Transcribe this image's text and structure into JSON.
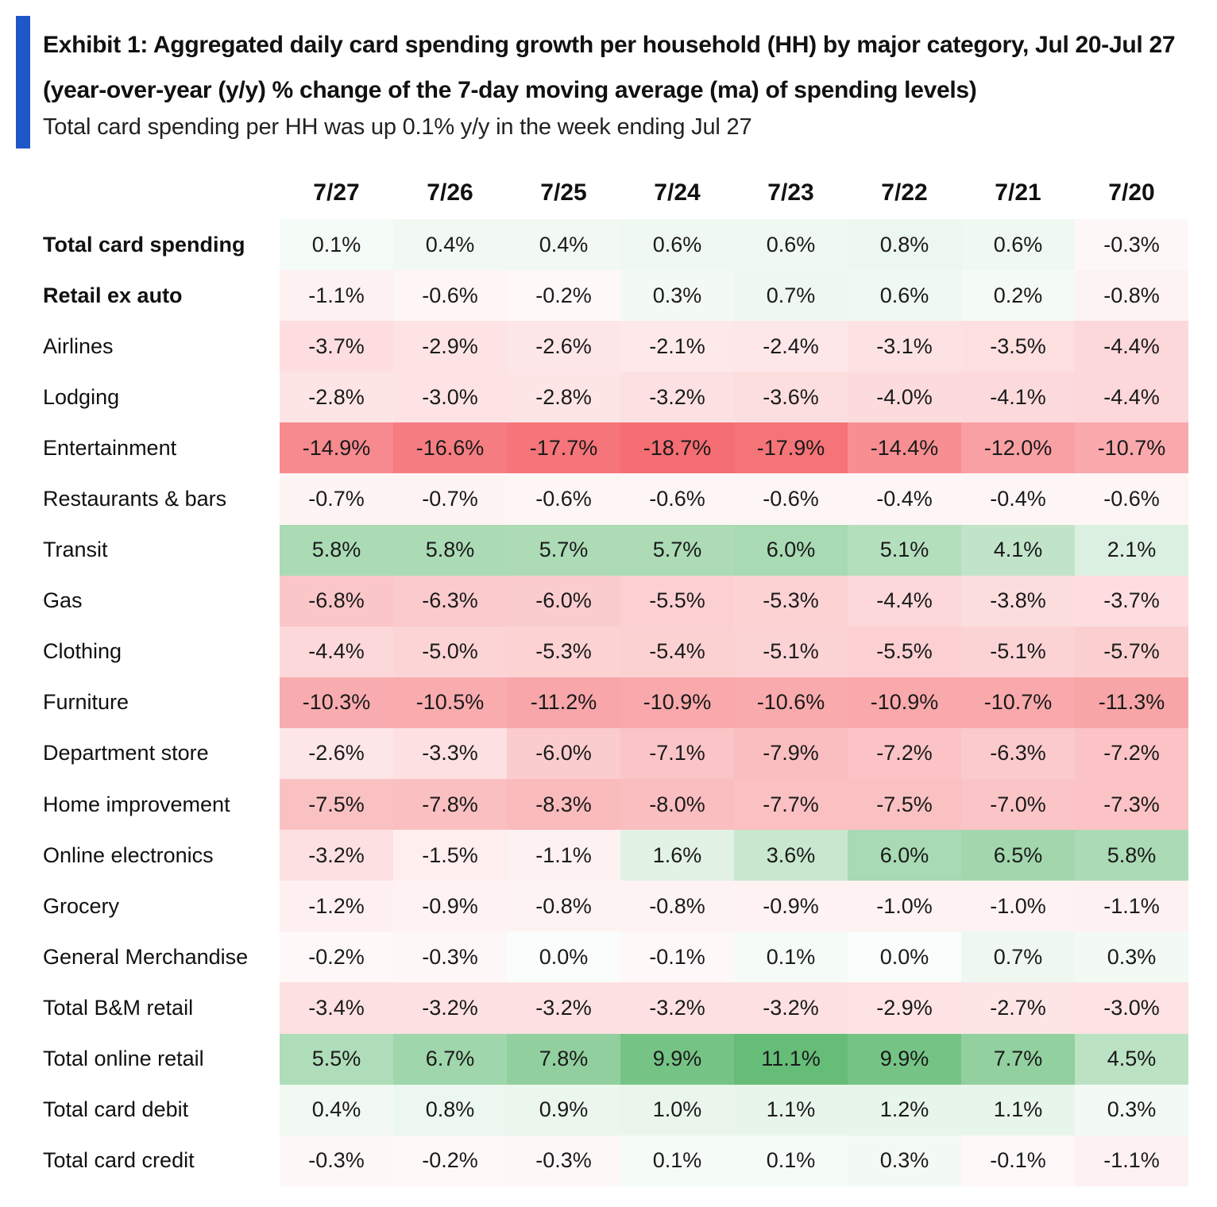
{
  "header": {
    "title": "Exhibit 1: Aggregated daily card spending growth per household (HH) by major category, Jul 20-Jul 27 (year-over-year (y/y) % change of the 7-day moving average (ma) of spending levels)",
    "subtitle": "Total card spending per HH was up 0.1% y/y in the week ending Jul 27",
    "accent_color": "#1f57c8"
  },
  "colors": {
    "negative": "#f46a6f",
    "positive": "#5ab86e",
    "neutral": "#ffffff"
  },
  "chart_data": {
    "type": "heatmap",
    "title": "Exhibit 1: Aggregated daily card spending growth per household (HH) by major category, Jul 20-Jul 27 (year-over-year (y/y) % change of the 7-day moving average (ma) of spending levels)",
    "subtitle": "Total card spending per HH was up 0.1% y/y in the week ending Jul 27",
    "unit": "%",
    "columns": [
      "7/27",
      "7/26",
      "7/25",
      "7/24",
      "7/23",
      "7/22",
      "7/21",
      "7/20"
    ],
    "rows": [
      {
        "label": "Total card spending",
        "bold": true,
        "values": [
          0.1,
          0.4,
          0.4,
          0.6,
          0.6,
          0.8,
          0.6,
          -0.3
        ]
      },
      {
        "label": "Retail ex auto",
        "bold": true,
        "values": [
          -1.1,
          -0.6,
          -0.2,
          0.3,
          0.7,
          0.6,
          0.2,
          -0.8
        ]
      },
      {
        "label": "Airlines",
        "values": [
          -3.7,
          -2.9,
          -2.6,
          -2.1,
          -2.4,
          -3.1,
          -3.5,
          -4.4
        ]
      },
      {
        "label": "Lodging",
        "values": [
          -2.8,
          -3.0,
          -2.8,
          -3.2,
          -3.6,
          -4.0,
          -4.1,
          -4.4
        ]
      },
      {
        "label": "Entertainment",
        "values": [
          -14.9,
          -16.6,
          -17.7,
          -18.7,
          -17.9,
          -14.4,
          -12.0,
          -10.7
        ]
      },
      {
        "label": "Restaurants & bars",
        "values": [
          -0.7,
          -0.7,
          -0.6,
          -0.6,
          -0.6,
          -0.4,
          -0.4,
          -0.6
        ]
      },
      {
        "label": "Transit",
        "values": [
          5.8,
          5.8,
          5.7,
          5.7,
          6.0,
          5.1,
          4.1,
          2.1
        ]
      },
      {
        "label": "Gas",
        "values": [
          -6.8,
          -6.3,
          -6.0,
          -5.5,
          -5.3,
          -4.4,
          -3.8,
          -3.7
        ]
      },
      {
        "label": "Clothing",
        "values": [
          -4.4,
          -5.0,
          -5.3,
          -5.4,
          -5.1,
          -5.5,
          -5.1,
          -5.7
        ]
      },
      {
        "label": "Furniture",
        "values": [
          -10.3,
          -10.5,
          -11.2,
          -10.9,
          -10.6,
          -10.9,
          -10.7,
          -11.3
        ]
      },
      {
        "label": "Department store",
        "values": [
          -2.6,
          -3.3,
          -6.0,
          -7.1,
          -7.9,
          -7.2,
          -6.3,
          -7.2
        ]
      },
      {
        "label": "Home improvement",
        "values": [
          -7.5,
          -7.8,
          -8.3,
          -8.0,
          -7.7,
          -7.5,
          -7.0,
          -7.3
        ]
      },
      {
        "label": "Online electronics",
        "values": [
          -3.2,
          -1.5,
          -1.1,
          1.6,
          3.6,
          6.0,
          6.5,
          5.8
        ]
      },
      {
        "label": "Grocery",
        "values": [
          -1.2,
          -0.9,
          -0.8,
          -0.8,
          -0.9,
          -1.0,
          -1.0,
          -1.1
        ]
      },
      {
        "label": "General Merchandise",
        "values": [
          -0.2,
          -0.3,
          0.0,
          -0.1,
          0.1,
          0.0,
          0.7,
          0.3
        ]
      },
      {
        "label": "Total B&M retail",
        "values": [
          -3.4,
          -3.2,
          -3.2,
          -3.2,
          -3.2,
          -2.9,
          -2.7,
          -3.0
        ]
      },
      {
        "label": "Total online retail",
        "values": [
          5.5,
          6.7,
          7.8,
          9.9,
          11.1,
          9.9,
          7.7,
          4.5
        ]
      },
      {
        "label": "Total card debit",
        "values": [
          0.4,
          0.8,
          0.9,
          1.0,
          1.1,
          1.2,
          1.1,
          0.3
        ]
      },
      {
        "label": "Total card credit",
        "values": [
          -0.3,
          -0.2,
          -0.3,
          0.1,
          0.1,
          0.3,
          -0.1,
          -1.1
        ]
      }
    ]
  }
}
